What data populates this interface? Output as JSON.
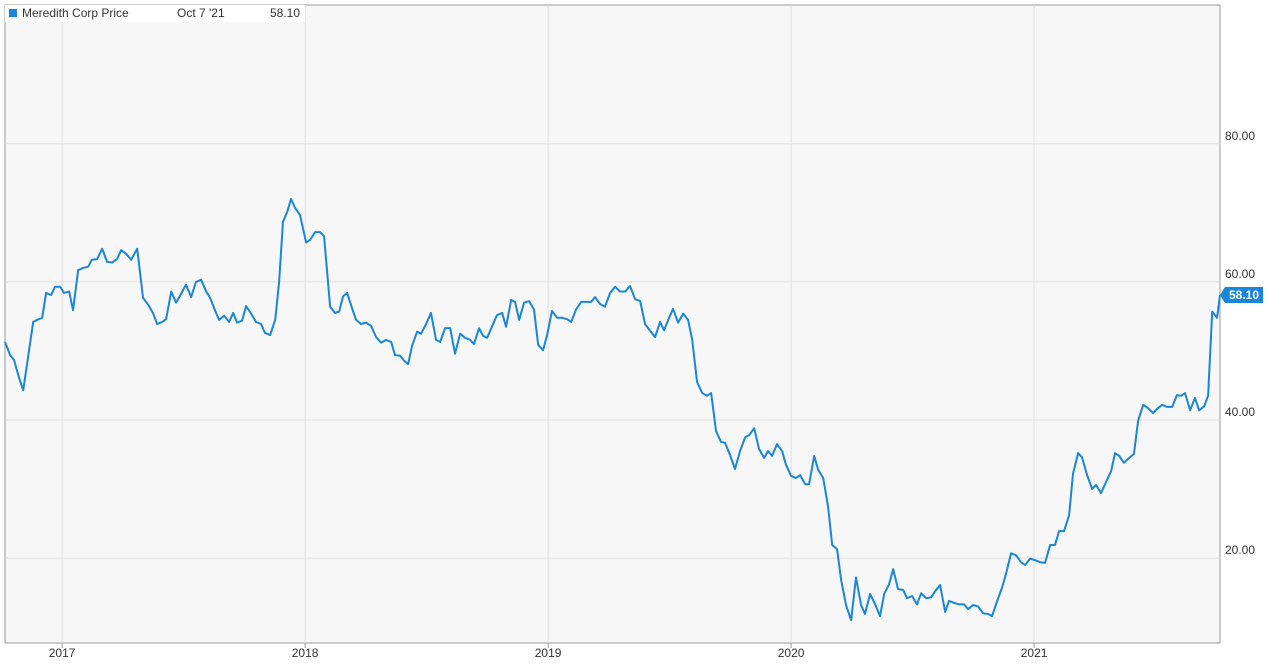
{
  "chart_data": {
    "type": "line",
    "xlim": [
      2016.765,
      2021.765
    ],
    "xticks": [
      2017,
      2018,
      2019,
      2020,
      2021
    ],
    "ylim": [
      7.7,
      100.1
    ],
    "yticks": [
      {
        "value": 20,
        "label": "20.00"
      },
      {
        "value": 40,
        "label": "40.00"
      },
      {
        "value": 60,
        "label": "60.00"
      },
      {
        "value": 80,
        "label": "80.00"
      }
    ],
    "grid": true,
    "series": [
      {
        "name": "Meredith Corp Price",
        "color": "#1a86d9",
        "last_point": {
          "date": "Oct 7 '21",
          "label": "58.10"
        },
        "x": [
          2016.765,
          2016.786,
          2016.802,
          2016.823,
          2016.84,
          2016.881,
          2016.897,
          2016.918,
          2016.934,
          2016.955,
          2016.971,
          2016.992,
          2017.008,
          2017.029,
          2017.045,
          2017.066,
          2017.086,
          2017.107,
          2017.123,
          2017.144,
          2017.165,
          2017.185,
          2017.206,
          2017.226,
          2017.243,
          2017.263,
          2017.284,
          2017.309,
          2017.333,
          2017.354,
          2017.374,
          2017.391,
          2017.412,
          2017.428,
          2017.449,
          2017.469,
          2017.49,
          2017.51,
          2017.531,
          2017.551,
          2017.572,
          2017.593,
          2017.609,
          2017.63,
          2017.646,
          2017.667,
          2017.687,
          2017.704,
          2017.72,
          2017.741,
          2017.757,
          2017.778,
          2017.798,
          2017.819,
          2017.835,
          2017.856,
          2017.877,
          2017.893,
          2017.909,
          2017.926,
          2017.942,
          2017.959,
          2017.979,
          2018.004,
          2018.021,
          2018.041,
          2018.062,
          2018.078,
          2018.103,
          2018.123,
          2018.14,
          2018.156,
          2018.173,
          2018.193,
          2018.21,
          2018.23,
          2018.251,
          2018.272,
          2018.292,
          2018.313,
          2018.333,
          2018.354,
          2018.37,
          2018.391,
          2018.407,
          2018.424,
          2018.44,
          2018.461,
          2018.477,
          2018.498,
          2018.518,
          2018.539,
          2018.556,
          2018.576,
          2018.597,
          2018.617,
          2018.638,
          2018.658,
          2018.679,
          2018.695,
          2018.716,
          2018.732,
          2018.749,
          2018.77,
          2018.79,
          2018.811,
          2018.827,
          2018.848,
          2018.864,
          2018.881,
          2018.901,
          2018.922,
          2018.942,
          2018.959,
          2018.979,
          2018.996,
          2019.016,
          2019.037,
          2019.058,
          2019.078,
          2019.095,
          2019.115,
          2019.136,
          2019.156,
          2019.177,
          2019.193,
          2019.214,
          2019.234,
          2019.255,
          2019.276,
          2019.296,
          2019.317,
          2019.337,
          2019.358,
          2019.379,
          2019.399,
          2019.42,
          2019.44,
          2019.461,
          2019.477,
          2019.498,
          2019.514,
          2019.535,
          2019.556,
          2019.576,
          2019.593,
          2019.613,
          2019.634,
          2019.654,
          2019.671,
          2019.691,
          2019.712,
          2019.728,
          2019.749,
          2019.769,
          2019.79,
          2019.811,
          2019.827,
          2019.848,
          2019.868,
          2019.889,
          2019.905,
          2019.922,
          2019.942,
          2019.963,
          2019.979,
          2020.0,
          2020.02,
          2020.037,
          2020.058,
          2020.074,
          2020.095,
          2020.111,
          2020.132,
          2020.152,
          2020.169,
          2020.189,
          2020.206,
          2020.226,
          2020.247,
          2020.267,
          2020.288,
          2020.304,
          2020.325,
          2020.346,
          2020.366,
          2020.383,
          2020.403,
          2020.42,
          2020.44,
          2020.461,
          2020.477,
          2020.498,
          2020.518,
          2020.535,
          2020.556,
          2020.576,
          2020.593,
          2020.613,
          2020.634,
          2020.65,
          2020.671,
          2020.691,
          2020.712,
          2020.728,
          2020.749,
          2020.769,
          2020.79,
          2020.811,
          2020.827,
          2020.848,
          2020.868,
          2020.885,
          2020.905,
          2020.926,
          2020.946,
          2020.963,
          2020.983,
          2021.004,
          2021.025,
          2021.045,
          2021.066,
          2021.086,
          2021.103,
          2021.123,
          2021.144,
          2021.16,
          2021.181,
          2021.197,
          2021.218,
          2021.239,
          2021.255,
          2021.275,
          2021.296,
          2021.317,
          2021.333,
          2021.35,
          2021.37,
          2021.391,
          2021.411,
          2021.428,
          2021.449,
          2021.469,
          2021.49,
          2021.506,
          2021.527,
          2021.547,
          2021.568,
          2021.588,
          2021.605,
          2021.621,
          2021.642,
          2021.662,
          2021.679,
          2021.7,
          2021.716,
          2021.733,
          2021.753,
          2021.765
        ],
        "values": [
          51.3,
          49.4,
          48.7,
          46.1,
          44.3,
          54.2,
          54.5,
          54.8,
          58.4,
          58.1,
          59.3,
          59.3,
          58.4,
          58.6,
          55.9,
          61.7,
          62.0,
          62.2,
          63.2,
          63.3,
          64.8,
          62.9,
          62.8,
          63.3,
          64.6,
          64.1,
          63.2,
          64.8,
          57.7,
          56.7,
          55.5,
          53.9,
          54.2,
          54.6,
          58.6,
          57.0,
          58.3,
          59.6,
          57.8,
          60.0,
          60.3,
          58.6,
          57.7,
          55.8,
          54.5,
          55.1,
          54.2,
          55.5,
          54.1,
          54.4,
          56.5,
          55.4,
          54.2,
          53.9,
          52.6,
          52.3,
          54.5,
          60.0,
          68.7,
          70.1,
          72.0,
          70.7,
          69.7,
          65.7,
          66.1,
          67.2,
          67.2,
          66.6,
          56.4,
          55.5,
          55.7,
          57.9,
          58.4,
          56.2,
          54.5,
          53.9,
          54.1,
          53.6,
          52.0,
          51.2,
          51.6,
          51.3,
          49.4,
          49.3,
          48.6,
          48.1,
          50.7,
          52.8,
          52.5,
          53.9,
          55.5,
          51.6,
          51.3,
          53.3,
          53.3,
          49.6,
          52.5,
          51.9,
          51.6,
          51.0,
          53.3,
          52.2,
          51.9,
          53.6,
          55.2,
          55.5,
          53.5,
          57.4,
          57.1,
          54.5,
          57.0,
          57.2,
          56.0,
          50.9,
          50.1,
          52.3,
          55.8,
          54.8,
          54.8,
          54.6,
          54.2,
          56.0,
          57.1,
          57.1,
          57.1,
          57.8,
          56.8,
          56.4,
          58.4,
          59.3,
          58.6,
          58.6,
          59.4,
          57.5,
          57.2,
          53.9,
          52.9,
          52.0,
          54.2,
          53.0,
          54.8,
          56.1,
          54.1,
          55.4,
          54.5,
          51.6,
          45.5,
          43.9,
          43.5,
          43.9,
          38.4,
          36.8,
          36.7,
          34.9,
          32.9,
          35.5,
          37.5,
          37.8,
          38.8,
          35.8,
          34.5,
          35.5,
          34.8,
          36.5,
          35.5,
          33.5,
          31.9,
          31.6,
          32.0,
          30.7,
          30.7,
          34.8,
          32.8,
          31.6,
          27.5,
          21.9,
          21.3,
          16.8,
          13.2,
          11.0,
          17.2,
          13.2,
          11.9,
          14.8,
          13.3,
          11.6,
          14.8,
          16.2,
          18.4,
          15.5,
          15.4,
          14.2,
          14.5,
          13.3,
          14.9,
          14.2,
          14.3,
          15.2,
          16.1,
          12.2,
          13.8,
          13.5,
          13.3,
          13.3,
          12.6,
          13.2,
          13.0,
          12.0,
          11.9,
          11.6,
          13.8,
          15.7,
          17.8,
          20.7,
          20.4,
          19.4,
          19.0,
          19.9,
          19.7,
          19.4,
          19.3,
          21.9,
          21.9,
          23.9,
          23.9,
          26.2,
          32.2,
          35.2,
          34.6,
          32.0,
          30.0,
          30.6,
          29.4,
          31.0,
          32.6,
          35.2,
          34.8,
          33.8,
          34.5,
          35.1,
          39.9,
          42.2,
          41.7,
          41.0,
          41.6,
          42.2,
          41.9,
          41.9,
          43.6,
          43.5,
          43.9,
          41.4,
          43.2,
          41.4,
          42.0,
          43.5,
          55.7,
          54.8,
          58.1
        ]
      }
    ]
  }
}
